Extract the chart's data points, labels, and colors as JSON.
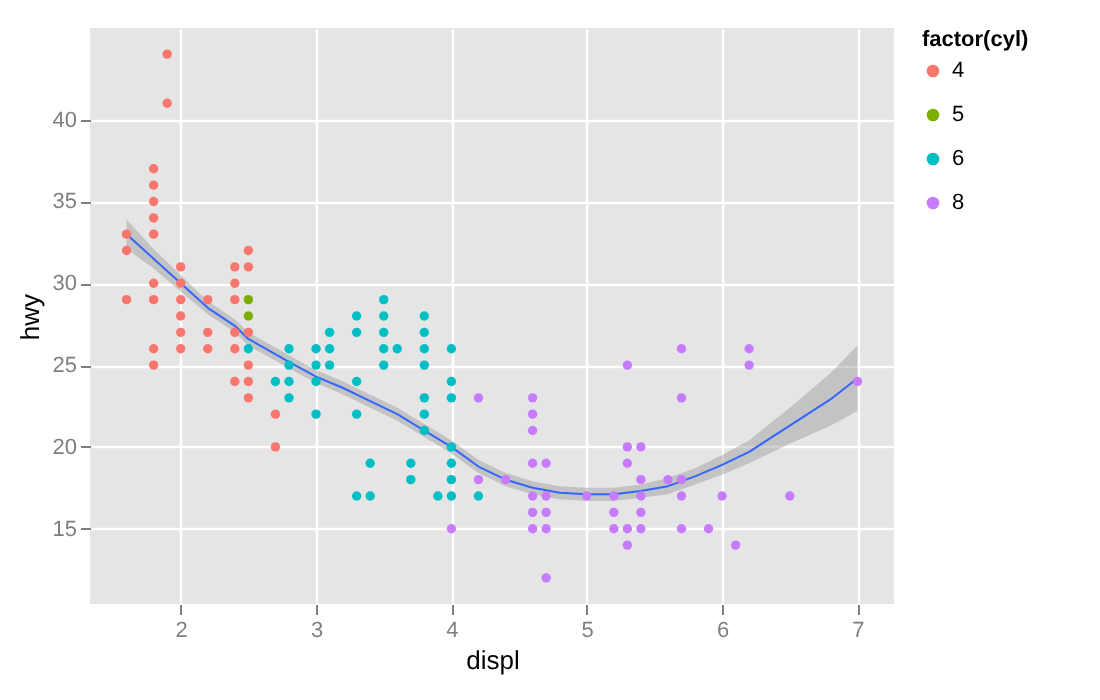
{
  "chart_data": {
    "type": "scatter",
    "xlabel": "displ",
    "ylabel": "hwy",
    "legend_title": "factor(cyl)",
    "legend": "right",
    "grid": true,
    "marker": "circle",
    "xlim": [
      1.33,
      7.27
    ],
    "ylim": [
      10.4,
      45.6
    ],
    "xticks": [
      2,
      3,
      4,
      5,
      6,
      7
    ],
    "yticks": [
      15,
      20,
      25,
      30,
      35,
      40
    ],
    "series": [
      {
        "name": "4",
        "color": "#f8766d",
        "x": [
          1.6,
          1.6,
          1.6,
          1.8,
          1.8,
          1.8,
          1.8,
          1.8,
          1.8,
          1.8,
          1.8,
          1.8,
          1.9,
          1.9,
          2.0,
          2.0,
          2.0,
          2.0,
          2.0,
          2.0,
          2.2,
          2.2,
          2.2,
          2.4,
          2.4,
          2.4,
          2.4,
          2.4,
          2.4,
          2.5,
          2.5,
          2.5,
          2.5,
          2.5,
          2.5,
          2.7,
          2.7
        ],
        "values": [
          33,
          32,
          29,
          37,
          36,
          35,
          34,
          33,
          30,
          29,
          26,
          25,
          44,
          41,
          31,
          30,
          29,
          28,
          27,
          26,
          29,
          27,
          26,
          31,
          30,
          29,
          27,
          26,
          24,
          32,
          31,
          27,
          25,
          24,
          23,
          22,
          20
        ]
      },
      {
        "name": "5",
        "color": "#7cae00",
        "x": [
          2.5,
          2.5
        ],
        "values": [
          29,
          28
        ]
      },
      {
        "name": "6",
        "color": "#00bfc4",
        "x": [
          2.5,
          2.7,
          2.8,
          2.8,
          2.8,
          2.8,
          3.0,
          3.0,
          3.0,
          3.0,
          3.1,
          3.1,
          3.1,
          3.3,
          3.3,
          3.3,
          3.3,
          3.3,
          3.4,
          3.4,
          3.5,
          3.5,
          3.5,
          3.5,
          3.5,
          3.6,
          3.7,
          3.7,
          3.8,
          3.8,
          3.8,
          3.8,
          3.8,
          3.8,
          3.8,
          3.9,
          4.0,
          4.0,
          4.0,
          4.0,
          4.0,
          4.0,
          4.0,
          4.2
        ],
        "values": [
          26,
          24,
          26,
          25,
          24,
          23,
          26,
          25,
          24,
          22,
          27,
          26,
          25,
          28,
          27,
          24,
          22,
          17,
          19,
          17,
          29,
          28,
          27,
          26,
          25,
          26,
          19,
          18,
          28,
          27,
          26,
          25,
          23,
          22,
          21,
          17,
          26,
          24,
          23,
          20,
          19,
          18,
          17,
          17
        ]
      },
      {
        "name": "8",
        "color": "#c77cff",
        "x": [
          4.0,
          4.2,
          4.2,
          4.4,
          4.6,
          4.6,
          4.6,
          4.6,
          4.6,
          4.6,
          4.6,
          4.7,
          4.7,
          4.7,
          4.7,
          4.7,
          5.0,
          5.2,
          5.2,
          5.2,
          5.3,
          5.3,
          5.3,
          5.3,
          5.3,
          5.4,
          5.4,
          5.4,
          5.4,
          5.4,
          5.6,
          5.7,
          5.7,
          5.7,
          5.7,
          5.7,
          5.9,
          6.0,
          6.1,
          6.2,
          6.2,
          6.5,
          7.0
        ],
        "values": [
          15,
          23,
          18,
          18,
          23,
          22,
          21,
          19,
          17,
          16,
          15,
          19,
          17,
          16,
          15,
          12,
          17,
          17,
          16,
          15,
          25,
          20,
          19,
          15,
          14,
          20,
          18,
          17,
          16,
          15,
          18,
          26,
          23,
          18,
          17,
          15,
          15,
          17,
          14,
          26,
          25,
          17,
          24
        ]
      },
      {
        "type": "line",
        "marker": "none",
        "color": "#3366ff",
        "x": [
          1.6,
          1.8,
          2.0,
          2.2,
          2.4,
          2.5,
          2.8,
          3.0,
          3.2,
          3.4,
          3.6,
          3.8,
          4.0,
          4.2,
          4.4,
          4.6,
          4.8,
          5.0,
          5.2,
          5.4,
          5.6,
          5.8,
          6.0,
          6.2,
          6.5,
          6.8,
          7.0
        ],
        "values": [
          33,
          31.5,
          30,
          28.5,
          27.4,
          26.6,
          25.2,
          24.3,
          23.6,
          22.8,
          22,
          21,
          20,
          18.8,
          18,
          17.5,
          17.2,
          17.1,
          17.1,
          17.3,
          17.6,
          18.2,
          18.9,
          19.7,
          21.3,
          22.9,
          24.2
        ],
        "lower": [
          32.1,
          30.9,
          29.5,
          28.1,
          27,
          26.2,
          24.8,
          23.9,
          23.2,
          22.4,
          21.6,
          20.6,
          19.6,
          18.4,
          17.6,
          17.1,
          16.8,
          16.7,
          16.7,
          16.9,
          17.1,
          17.7,
          18.3,
          19,
          20.2,
          21.3,
          22.2
        ],
        "upper": [
          33.9,
          32.1,
          30.5,
          28.9,
          27.8,
          27,
          25.6,
          24.7,
          24,
          23.2,
          22.4,
          21.4,
          20.4,
          19.2,
          18.4,
          17.9,
          17.6,
          17.5,
          17.5,
          17.7,
          18.1,
          18.7,
          19.5,
          20.4,
          22.4,
          24.5,
          26.2
        ]
      }
    ]
  }
}
